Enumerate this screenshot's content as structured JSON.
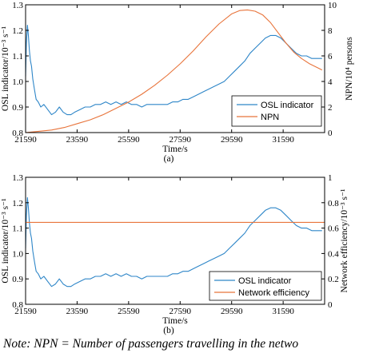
{
  "note": "Note: NPN = Number of passengers travelling in the netwo",
  "colors": {
    "osl": "#2e86c8",
    "second": "#e8743b",
    "axis": "#000000"
  },
  "chart_data": [
    {
      "type": "line",
      "panel_label": "(a)",
      "xlabel": "Time/s",
      "ylabel": "OSL indicator/10⁻³ s⁻¹",
      "y2label": "NPN/10⁴ persons",
      "xlim": [
        21590,
        33200
      ],
      "ylim": [
        0.8,
        1.3
      ],
      "y2lim": [
        0,
        10
      ],
      "xticks": [
        21590,
        23590,
        25590,
        27590,
        29590,
        31590
      ],
      "yticks": [
        0.8,
        0.9,
        1.0,
        1.1,
        1.2,
        1.3
      ],
      "y2ticks": [
        0,
        2,
        4,
        6,
        8,
        10
      ],
      "legend_position": "lower-right",
      "series": [
        {
          "name": "OSL indicator",
          "axis": "left",
          "x": [
            21590,
            21620,
            21660,
            21700,
            21740,
            21780,
            21820,
            21870,
            21930,
            22000,
            22080,
            22180,
            22300,
            22450,
            22600,
            22750,
            22900,
            23050,
            23200,
            23350,
            23500,
            23700,
            23900,
            24100,
            24300,
            24500,
            24700,
            24900,
            25100,
            25300,
            25500,
            25700,
            25900,
            26100,
            26300,
            26500,
            26700,
            26900,
            27100,
            27300,
            27500,
            27700,
            27900,
            28100,
            28300,
            28500,
            28700,
            28900,
            29100,
            29300,
            29500,
            29700,
            29900,
            30100,
            30300,
            30500,
            30700,
            30900,
            31100,
            31300,
            31500,
            31700,
            31900,
            32100,
            32300,
            32500,
            32700,
            32900,
            33100
          ],
          "values": [
            1.02,
            1.15,
            1.22,
            1.18,
            1.12,
            1.08,
            1.06,
            1.01,
            0.97,
            0.93,
            0.92,
            0.9,
            0.91,
            0.89,
            0.87,
            0.88,
            0.9,
            0.88,
            0.87,
            0.87,
            0.88,
            0.89,
            0.9,
            0.9,
            0.91,
            0.91,
            0.92,
            0.91,
            0.92,
            0.91,
            0.92,
            0.91,
            0.91,
            0.9,
            0.91,
            0.91,
            0.91,
            0.91,
            0.91,
            0.92,
            0.92,
            0.93,
            0.93,
            0.94,
            0.95,
            0.96,
            0.97,
            0.98,
            0.99,
            1.0,
            1.02,
            1.04,
            1.06,
            1.08,
            1.11,
            1.13,
            1.15,
            1.17,
            1.18,
            1.18,
            1.17,
            1.15,
            1.13,
            1.11,
            1.1,
            1.1,
            1.09,
            1.09,
            1.09
          ]
        },
        {
          "name": "NPN",
          "axis": "right",
          "x": [
            21590,
            22100,
            22600,
            23100,
            23600,
            24100,
            24600,
            25100,
            25600,
            26100,
            26600,
            27100,
            27600,
            28100,
            28600,
            29100,
            29600,
            29900,
            30200,
            30500,
            30800,
            31100,
            31400,
            31700,
            32000,
            32300,
            32600,
            32900,
            33100
          ],
          "values": [
            0.0,
            0.1,
            0.2,
            0.4,
            0.7,
            1.0,
            1.4,
            1.9,
            2.4,
            3.0,
            3.7,
            4.5,
            5.4,
            6.4,
            7.5,
            8.5,
            9.3,
            9.55,
            9.6,
            9.5,
            9.2,
            8.6,
            7.8,
            7.0,
            6.3,
            5.8,
            5.4,
            5.1,
            4.9
          ]
        }
      ]
    },
    {
      "type": "line",
      "panel_label": "(b)",
      "xlabel": "Time/s",
      "ylabel": "OSL indicator/10⁻³ s⁻¹",
      "y2label": "Network efficiency/10⁻³ s⁻¹",
      "xlim": [
        21590,
        33200
      ],
      "ylim": [
        0.8,
        1.3
      ],
      "y2lim": [
        0,
        1
      ],
      "xticks": [
        21590,
        23590,
        25590,
        27590,
        29590,
        31590
      ],
      "yticks": [
        0.8,
        0.9,
        1.0,
        1.1,
        1.2,
        1.3
      ],
      "y2ticks": [
        0,
        0.2,
        0.4,
        0.6,
        0.8,
        1
      ],
      "legend_position": "lower-right",
      "series": [
        {
          "name": "OSL indicator",
          "axis": "left",
          "x": [
            21590,
            21620,
            21660,
            21700,
            21740,
            21780,
            21820,
            21870,
            21930,
            22000,
            22080,
            22180,
            22300,
            22450,
            22600,
            22750,
            22900,
            23050,
            23200,
            23350,
            23500,
            23700,
            23900,
            24100,
            24300,
            24500,
            24700,
            24900,
            25100,
            25300,
            25500,
            25700,
            25900,
            26100,
            26300,
            26500,
            26700,
            26900,
            27100,
            27300,
            27500,
            27700,
            27900,
            28100,
            28300,
            28500,
            28700,
            28900,
            29100,
            29300,
            29500,
            29700,
            29900,
            30100,
            30300,
            30500,
            30700,
            30900,
            31100,
            31300,
            31500,
            31700,
            31900,
            32100,
            32300,
            32500,
            32700,
            32900,
            33100
          ],
          "values": [
            1.02,
            1.15,
            1.22,
            1.18,
            1.12,
            1.08,
            1.06,
            1.01,
            0.97,
            0.93,
            0.92,
            0.9,
            0.91,
            0.89,
            0.87,
            0.88,
            0.9,
            0.88,
            0.87,
            0.87,
            0.88,
            0.89,
            0.9,
            0.9,
            0.91,
            0.91,
            0.92,
            0.91,
            0.92,
            0.91,
            0.92,
            0.91,
            0.91,
            0.9,
            0.91,
            0.91,
            0.91,
            0.91,
            0.91,
            0.92,
            0.92,
            0.93,
            0.93,
            0.94,
            0.95,
            0.96,
            0.97,
            0.98,
            0.99,
            1.0,
            1.02,
            1.04,
            1.06,
            1.08,
            1.11,
            1.13,
            1.15,
            1.17,
            1.18,
            1.18,
            1.17,
            1.15,
            1.13,
            1.11,
            1.1,
            1.1,
            1.09,
            1.09,
            1.09
          ]
        },
        {
          "name": "Network efficiency",
          "axis": "right",
          "x": [
            21590,
            33200
          ],
          "values": [
            0.645,
            0.645
          ]
        }
      ]
    }
  ]
}
